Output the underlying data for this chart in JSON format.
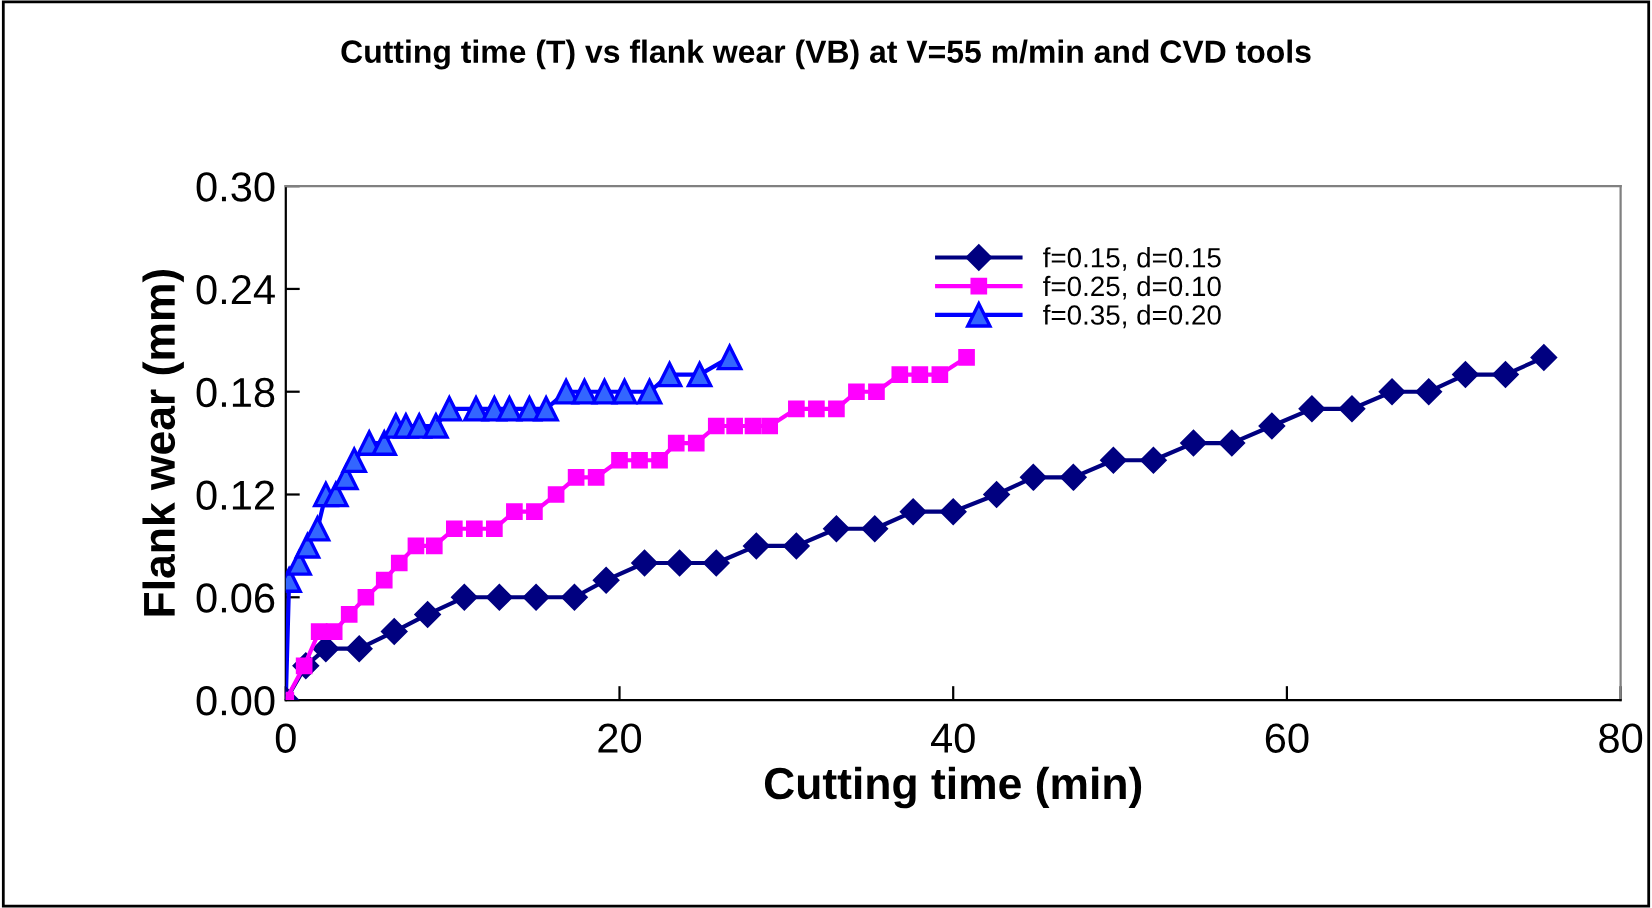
{
  "chart_data": {
    "type": "line",
    "title": "Cutting time (T) vs flank wear (VB) at V=55 m/min and CVD tools",
    "xlabel": "Cutting time (min)",
    "ylabel": "Flank wear (mm)",
    "series": [
      {
        "name": "f=0.15, d=0.15",
        "color": "#000080",
        "marker": "diamond",
        "x": [
          0,
          1.2,
          2.4,
          4.4,
          6.5,
          8.5,
          10.7,
          12.8,
          15,
          17.3,
          19.2,
          21.5,
          23.6,
          25.8,
          28.2,
          30.6,
          33,
          35.3,
          37.6,
          40,
          42.6,
          44.8,
          47.2,
          49.6,
          52,
          54.4,
          56.7,
          59.1,
          61.5,
          63.9,
          66.3,
          68.5,
          70.7,
          73.1,
          75.4
        ],
        "values": [
          0,
          0.02,
          0.03,
          0.03,
          0.04,
          0.05,
          0.06,
          0.06,
          0.06,
          0.06,
          0.07,
          0.08,
          0.08,
          0.08,
          0.09,
          0.09,
          0.1,
          0.1,
          0.11,
          0.11,
          0.12,
          0.13,
          0.13,
          0.14,
          0.14,
          0.15,
          0.15,
          0.16,
          0.17,
          0.17,
          0.18,
          0.18,
          0.19,
          0.19,
          0.2
        ]
      },
      {
        "name": "f=0.25, d=0.10",
        "color": "#ff00ff",
        "marker": "square",
        "x": [
          0,
          1.1,
          2.0,
          2.9,
          3.8,
          4.8,
          5.9,
          6.8,
          7.8,
          8.9,
          10.1,
          11.3,
          12.5,
          13.7,
          14.9,
          16.2,
          17.4,
          18.6,
          20.0,
          21.2,
          22.4,
          23.4,
          24.6,
          25.8,
          26.9,
          28.0,
          29.0,
          30.6,
          31.8,
          33.0,
          34.2,
          35.4,
          36.8,
          38.0,
          39.2,
          40.8
        ],
        "values": [
          0,
          0.02,
          0.04,
          0.04,
          0.05,
          0.06,
          0.07,
          0.08,
          0.09,
          0.09,
          0.1,
          0.1,
          0.1,
          0.11,
          0.11,
          0.12,
          0.13,
          0.13,
          0.14,
          0.14,
          0.14,
          0.15,
          0.15,
          0.16,
          0.16,
          0.16,
          0.16,
          0.17,
          0.17,
          0.17,
          0.18,
          0.18,
          0.19,
          0.19,
          0.19,
          0.2
        ]
      },
      {
        "name": "f=0.35, d=0.20",
        "color": "#3366ff",
        "marker": "triangle",
        "x": [
          0,
          0.2,
          0.8,
          1.3,
          1.9,
          2.4,
          3.0,
          3.6,
          4.1,
          5.0,
          5.9,
          6.6,
          7.2,
          8.0,
          9.0,
          9.8,
          11.4,
          12.5,
          13.4,
          14.6,
          15.6,
          16.8,
          17.9,
          19.1,
          20.3,
          21.8,
          23.0,
          24.8,
          26.6
        ],
        "values": [
          0,
          0.07,
          0.08,
          0.09,
          0.1,
          0.12,
          0.12,
          0.13,
          0.14,
          0.15,
          0.15,
          0.16,
          0.16,
          0.16,
          0.16,
          0.17,
          0.17,
          0.17,
          0.17,
          0.17,
          0.17,
          0.18,
          0.18,
          0.18,
          0.18,
          0.18,
          0.19,
          0.19,
          0.2
        ]
      }
    ],
    "xlim": [
      0,
      80
    ],
    "xticks": [
      0,
      20,
      40,
      60,
      80
    ],
    "ylim": [
      0,
      0.3
    ],
    "yticks": [
      {
        "value": 0,
        "label": "0.00"
      },
      {
        "value": 0.06,
        "label": "0.06"
      },
      {
        "value": 0.12,
        "label": "0.12"
      },
      {
        "value": 0.18,
        "label": "0.18"
      },
      {
        "value": 0.24,
        "label": "0.24"
      },
      {
        "value": 0.3,
        "label": "0.30"
      }
    ],
    "legend": "top right",
    "grid": false,
    "line_style": "solid"
  }
}
